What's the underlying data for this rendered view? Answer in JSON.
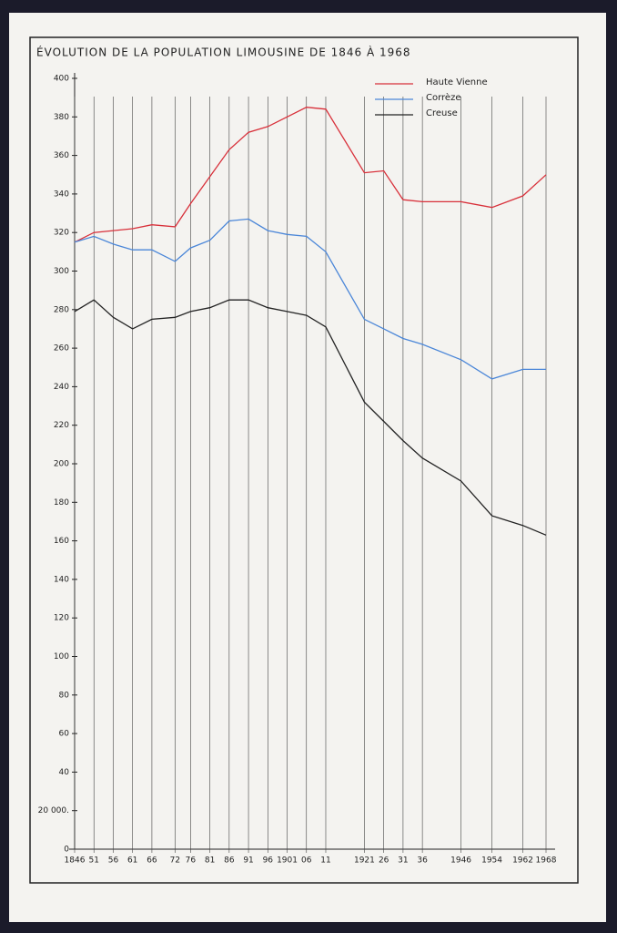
{
  "chart_data": {
    "type": "line",
    "title": "ÉVOLUTION DE LA POPULATION LIMOUSINE DE 1846 À 1968",
    "x": [
      1846,
      1851,
      1856,
      1861,
      1866,
      1872,
      1876,
      1881,
      1886,
      1891,
      1896,
      1901,
      1906,
      1911,
      1921,
      1926,
      1931,
      1936,
      1946,
      1954,
      1962,
      1968
    ],
    "series": [
      {
        "name": "Haute Vienne",
        "color": "#d8303a",
        "values": [
          315,
          320,
          321,
          322,
          324,
          323,
          335,
          349,
          363,
          372,
          375,
          380,
          385,
          384,
          351,
          352,
          337,
          336,
          336,
          333,
          339,
          350
        ]
      },
      {
        "name": "Corrèze",
        "color": "#4a86d8",
        "values": [
          315,
          318,
          314,
          311,
          311,
          305,
          312,
          316,
          326,
          327,
          321,
          319,
          318,
          310,
          275,
          270,
          265,
          262,
          254,
          244,
          249,
          249
        ]
      },
      {
        "name": "Creuse",
        "color": "#222222",
        "values": [
          279,
          285,
          276,
          270,
          275,
          276,
          279,
          281,
          285,
          285,
          281,
          279,
          277,
          271,
          232,
          222,
          212,
          203,
          191,
          173,
          168,
          163
        ]
      }
    ],
    "xlim": [
      1846,
      1968
    ],
    "xticks": [
      1846,
      {
        "value": 1851,
        "label": "51"
      },
      {
        "value": 1856,
        "label": "56"
      },
      {
        "value": 1861,
        "label": "61"
      },
      {
        "value": 1866,
        "label": "66"
      },
      {
        "value": 1872,
        "label": "72"
      },
      {
        "value": 1876,
        "label": "76"
      },
      {
        "value": 1881,
        "label": "81"
      },
      {
        "value": 1886,
        "label": "86"
      },
      {
        "value": 1891,
        "label": "91"
      },
      {
        "value": 1896,
        "label": "96"
      },
      1901,
      {
        "value": 1906,
        "label": "06"
      },
      {
        "value": 1911,
        "label": "11"
      },
      1921,
      {
        "value": 1926,
        "label": "26"
      },
      {
        "value": 1931,
        "label": "31"
      },
      {
        "value": 1936,
        "label": "36"
      },
      1946,
      1954,
      1962,
      1968
    ],
    "ylim": [
      0,
      400
    ],
    "yticks": [
      0,
      {
        "value": 20,
        "label": "20 000."
      },
      40,
      60,
      80,
      100,
      120,
      140,
      160,
      180,
      200,
      220,
      240,
      260,
      280,
      300,
      320,
      340,
      360,
      380,
      400
    ],
    "grid": true,
    "legend": "top-right"
  }
}
